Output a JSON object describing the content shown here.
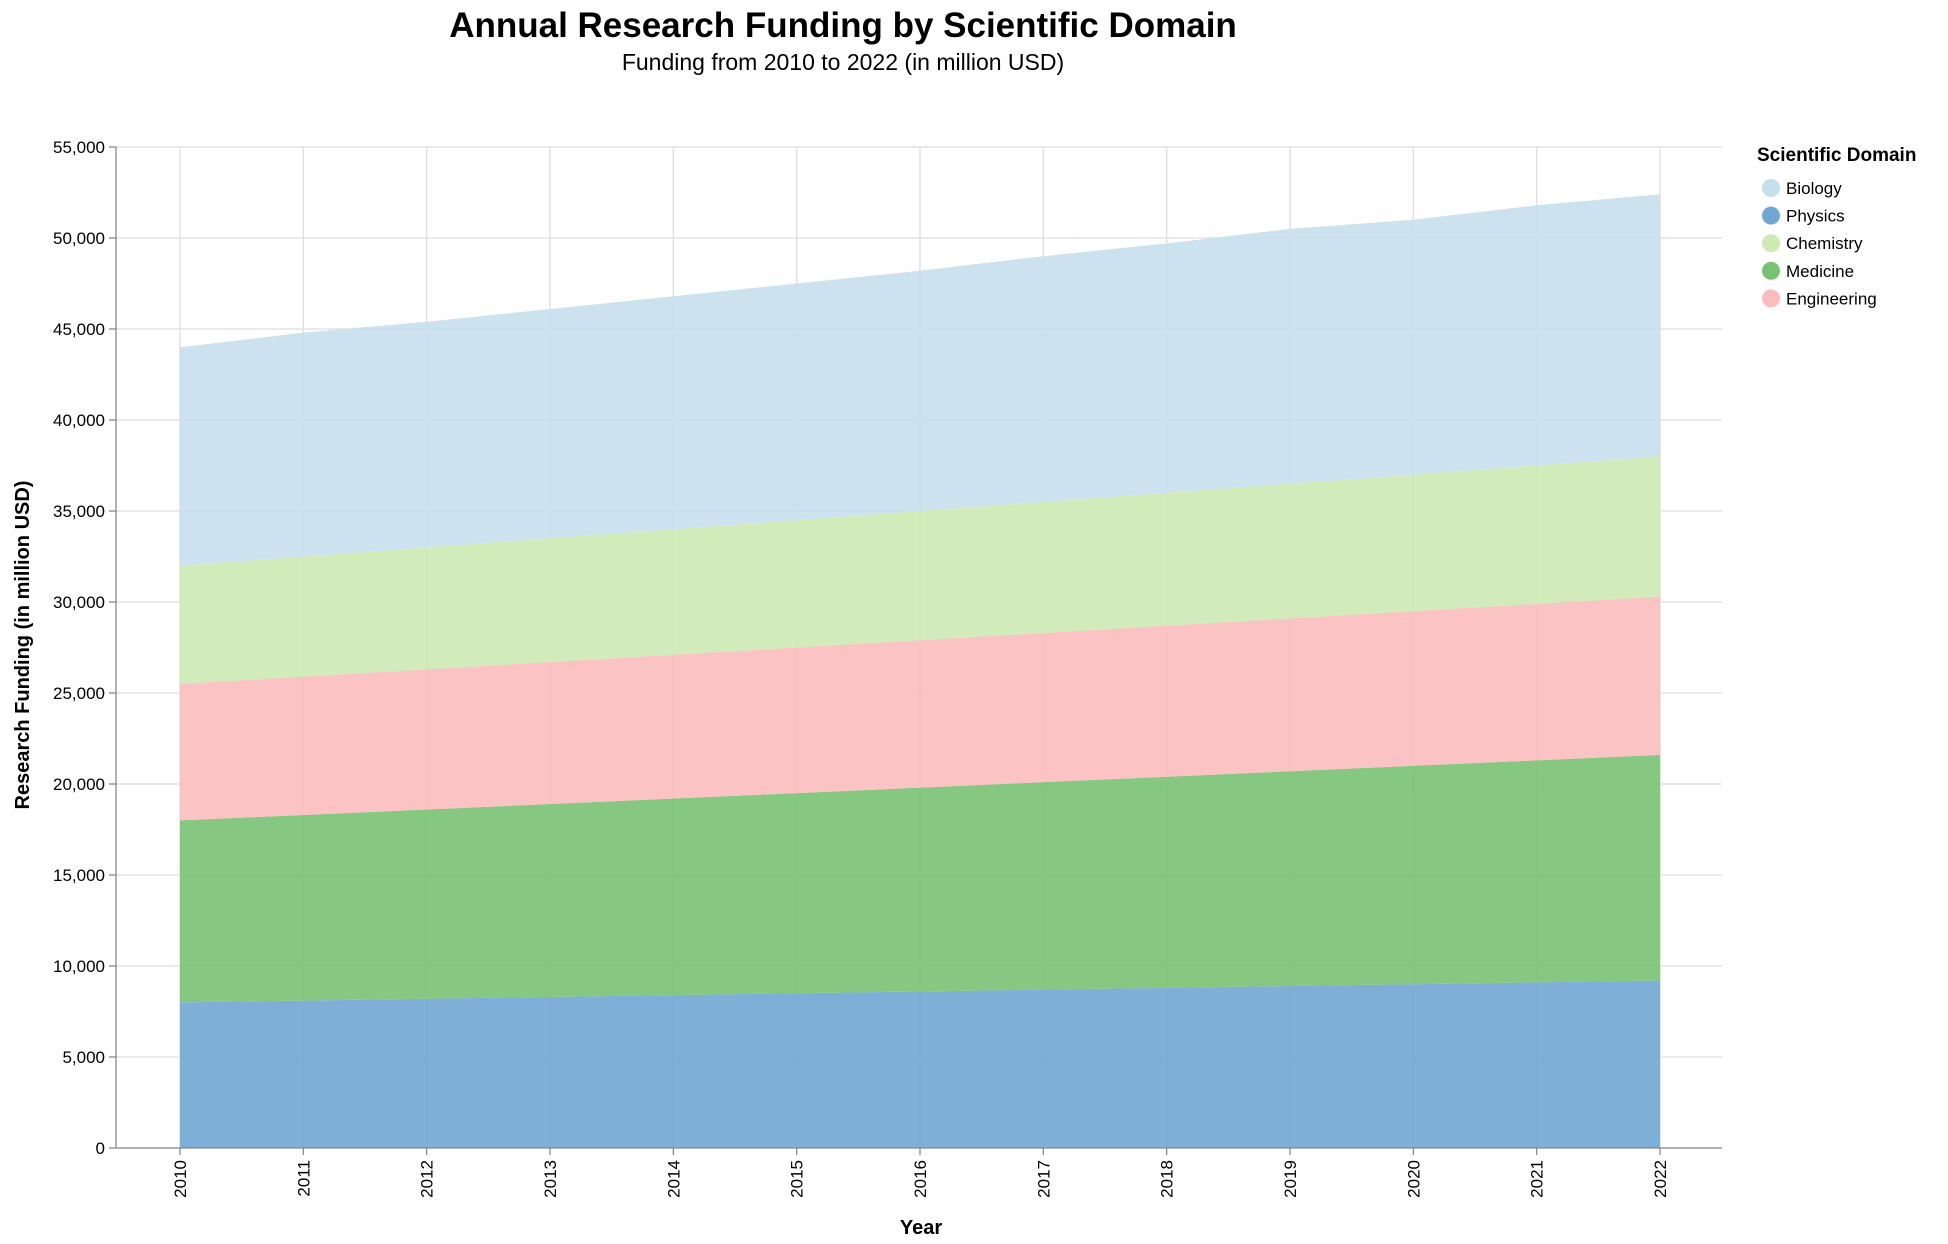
{
  "chart_data": {
    "type": "area",
    "stacked": true,
    "title": "Annual Research Funding by Scientific Domain",
    "subtitle": "Funding from 2010 to 2022 (in million USD)",
    "xlabel": "Year",
    "ylabel": "Research Funding (in million USD)",
    "x": [
      "2010",
      "2011",
      "2012",
      "2013",
      "2014",
      "2015",
      "2016",
      "2017",
      "2018",
      "2019",
      "2020",
      "2021",
      "2022"
    ],
    "ylim": [
      0,
      55000
    ],
    "yticks": [
      0,
      5000,
      10000,
      15000,
      20000,
      25000,
      30000,
      35000,
      40000,
      45000,
      50000,
      55000
    ],
    "ytick_labels": [
      "0",
      "5,000",
      "10,000",
      "15,000",
      "20,000",
      "25,000",
      "30,000",
      "35,000",
      "40,000",
      "45,000",
      "50,000",
      "55,000"
    ],
    "grid": true,
    "legend": {
      "title": "Scientific Domain",
      "position": "top-right"
    },
    "legend_order": [
      "Biology",
      "Physics",
      "Chemistry",
      "Medicine",
      "Engineering"
    ],
    "stack_order": [
      "Physics",
      "Medicine",
      "Engineering",
      "Chemistry",
      "Biology"
    ],
    "series": [
      {
        "name": "Biology",
        "color": "#c6dfec",
        "values": [
          12000,
          12300,
          12400,
          12600,
          12800,
          13000,
          13200,
          13500,
          13700,
          14000,
          14000,
          14300,
          14400
        ]
      },
      {
        "name": "Physics",
        "color": "#6fa6d3",
        "values": [
          8000,
          8100,
          8200,
          8300,
          8400,
          8500,
          8600,
          8700,
          8800,
          8900,
          9000,
          9100,
          9200
        ]
      },
      {
        "name": "Chemistry",
        "color": "#cde9b4",
        "values": [
          6500,
          6600,
          6700,
          6800,
          6900,
          7000,
          7100,
          7200,
          7300,
          7400,
          7500,
          7600,
          7700
        ]
      },
      {
        "name": "Medicine",
        "color": "#79c274",
        "values": [
          10000,
          10200,
          10400,
          10600,
          10800,
          11000,
          11200,
          11400,
          11600,
          11800,
          12000,
          12200,
          12400
        ]
      },
      {
        "name": "Engineering",
        "color": "#fbbcbd",
        "values": [
          7500,
          7600,
          7700,
          7800,
          7900,
          8000,
          8100,
          8200,
          8300,
          8400,
          8500,
          8600,
          8700
        ]
      }
    ]
  }
}
